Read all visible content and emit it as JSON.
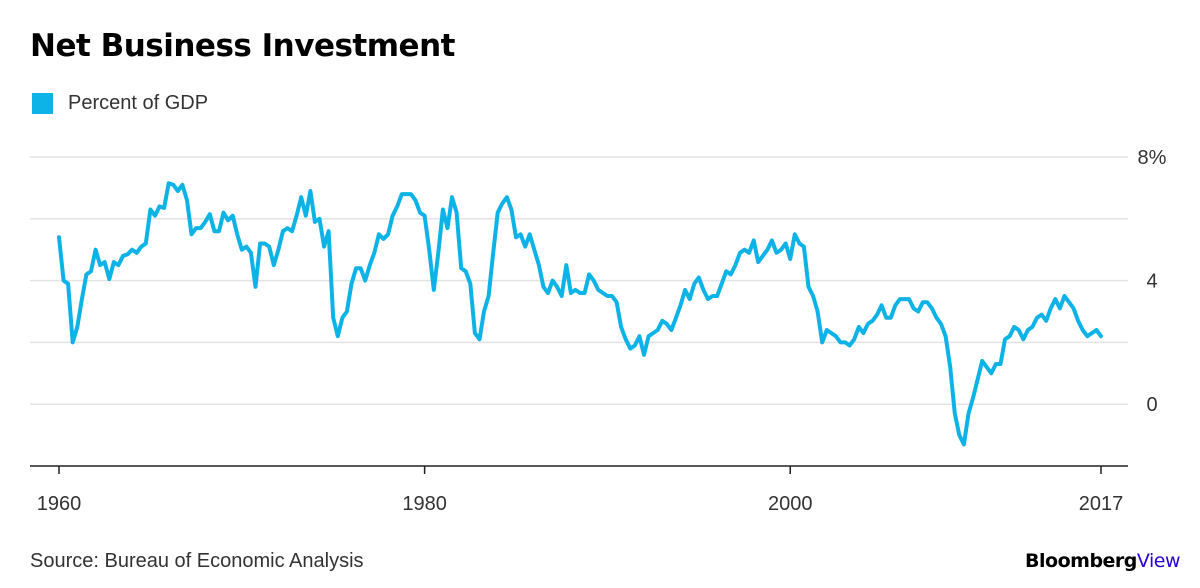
{
  "header": {
    "title": "Net Business Investment"
  },
  "legend": {
    "label": "Percent of GDP",
    "color": "#0db3e6"
  },
  "footer": {
    "source": "Source: Bureau of Economic Analysis",
    "brand_main": "Bloomberg",
    "brand_sub": "View"
  },
  "chart_data": {
    "type": "line",
    "title": "Net Business Investment",
    "xlabel": "",
    "ylabel": "",
    "xlim": [
      1960,
      2017
    ],
    "ylim": [
      -2,
      8
    ],
    "x_ticks": [
      {
        "value": 1960,
        "label": "1960",
        "anchor": "middle"
      },
      {
        "value": 1980,
        "label": "1980",
        "anchor": "middle"
      },
      {
        "value": 2000,
        "label": "2000",
        "anchor": "middle"
      },
      {
        "value": 2017,
        "label": "2017",
        "anchor": "middle"
      }
    ],
    "y_ticks": [
      {
        "value": 8,
        "label": "8%"
      },
      {
        "value": 6,
        "label": ""
      },
      {
        "value": 4,
        "label": "4"
      },
      {
        "value": 2,
        "label": ""
      },
      {
        "value": 0,
        "label": "0"
      }
    ],
    "grid": true,
    "series": [
      {
        "name": "Percent of GDP",
        "color": "#0db3e6",
        "points": [
          [
            1960.0,
            5.4
          ],
          [
            1960.25,
            4.0
          ],
          [
            1960.5,
            3.9
          ],
          [
            1960.75,
            2.0
          ],
          [
            1961.0,
            2.5
          ],
          [
            1961.25,
            3.4
          ],
          [
            1961.5,
            4.2
          ],
          [
            1961.75,
            4.3
          ],
          [
            1962.0,
            5.0
          ],
          [
            1962.25,
            4.5
          ],
          [
            1962.5,
            4.6
          ],
          [
            1962.75,
            4.05
          ],
          [
            1963.0,
            4.6
          ],
          [
            1963.25,
            4.5
          ],
          [
            1963.5,
            4.8
          ],
          [
            1963.75,
            4.85
          ],
          [
            1964.0,
            5.0
          ],
          [
            1964.25,
            4.9
          ],
          [
            1964.5,
            5.1
          ],
          [
            1964.75,
            5.2
          ],
          [
            1965.0,
            6.3
          ],
          [
            1965.25,
            6.1
          ],
          [
            1965.5,
            6.4
          ],
          [
            1965.75,
            6.35
          ],
          [
            1966.0,
            7.15
          ],
          [
            1966.25,
            7.1
          ],
          [
            1966.5,
            6.9
          ],
          [
            1966.75,
            7.1
          ],
          [
            1967.0,
            6.6
          ],
          [
            1967.25,
            5.5
          ],
          [
            1967.5,
            5.7
          ],
          [
            1967.75,
            5.7
          ],
          [
            1968.0,
            5.9
          ],
          [
            1968.25,
            6.15
          ],
          [
            1968.5,
            5.6
          ],
          [
            1968.75,
            5.6
          ],
          [
            1969.0,
            6.2
          ],
          [
            1969.25,
            5.95
          ],
          [
            1969.5,
            6.1
          ],
          [
            1969.75,
            5.5
          ],
          [
            1970.0,
            5.0
          ],
          [
            1970.25,
            5.1
          ],
          [
            1970.5,
            4.9
          ],
          [
            1970.75,
            3.8
          ],
          [
            1971.0,
            5.2
          ],
          [
            1971.25,
            5.2
          ],
          [
            1971.5,
            5.1
          ],
          [
            1971.75,
            4.5
          ],
          [
            1972.0,
            5.0
          ],
          [
            1972.25,
            5.6
          ],
          [
            1972.5,
            5.7
          ],
          [
            1972.75,
            5.6
          ],
          [
            1973.0,
            6.1
          ],
          [
            1973.25,
            6.7
          ],
          [
            1973.5,
            6.1
          ],
          [
            1973.75,
            6.9
          ],
          [
            1974.0,
            5.9
          ],
          [
            1974.25,
            6.0
          ],
          [
            1974.5,
            5.1
          ],
          [
            1974.75,
            5.6
          ],
          [
            1975.0,
            2.8
          ],
          [
            1975.25,
            2.2
          ],
          [
            1975.5,
            2.8
          ],
          [
            1975.75,
            3.0
          ],
          [
            1976.0,
            3.9
          ],
          [
            1976.25,
            4.4
          ],
          [
            1976.5,
            4.4
          ],
          [
            1976.75,
            4.0
          ],
          [
            1977.0,
            4.5
          ],
          [
            1977.25,
            4.9
          ],
          [
            1977.5,
            5.5
          ],
          [
            1977.75,
            5.35
          ],
          [
            1978.0,
            5.5
          ],
          [
            1978.25,
            6.1
          ],
          [
            1978.5,
            6.4
          ],
          [
            1978.75,
            6.8
          ],
          [
            1979.0,
            6.8
          ],
          [
            1979.25,
            6.8
          ],
          [
            1979.5,
            6.6
          ],
          [
            1979.75,
            6.2
          ],
          [
            1980.0,
            6.1
          ],
          [
            1980.25,
            5.0
          ],
          [
            1980.5,
            3.7
          ],
          [
            1980.75,
            4.9
          ],
          [
            1981.0,
            6.3
          ],
          [
            1981.25,
            5.7
          ],
          [
            1981.5,
            6.7
          ],
          [
            1981.75,
            6.2
          ],
          [
            1982.0,
            4.4
          ],
          [
            1982.25,
            4.3
          ],
          [
            1982.5,
            3.9
          ],
          [
            1982.75,
            2.3
          ],
          [
            1983.0,
            2.1
          ],
          [
            1983.25,
            3.0
          ],
          [
            1983.5,
            3.5
          ],
          [
            1983.75,
            4.9
          ],
          [
            1984.0,
            6.2
          ],
          [
            1984.25,
            6.5
          ],
          [
            1984.5,
            6.7
          ],
          [
            1984.75,
            6.3
          ],
          [
            1985.0,
            5.4
          ],
          [
            1985.25,
            5.5
          ],
          [
            1985.5,
            5.1
          ],
          [
            1985.75,
            5.5
          ],
          [
            1986.0,
            5.0
          ],
          [
            1986.25,
            4.5
          ],
          [
            1986.5,
            3.8
          ],
          [
            1986.75,
            3.6
          ],
          [
            1987.0,
            4.0
          ],
          [
            1987.25,
            3.8
          ],
          [
            1987.5,
            3.5
          ],
          [
            1987.75,
            4.5
          ],
          [
            1988.0,
            3.6
          ],
          [
            1988.25,
            3.7
          ],
          [
            1988.5,
            3.6
          ],
          [
            1988.75,
            3.6
          ],
          [
            1989.0,
            4.2
          ],
          [
            1989.25,
            4.0
          ],
          [
            1989.5,
            3.7
          ],
          [
            1989.75,
            3.6
          ],
          [
            1990.0,
            3.5
          ],
          [
            1990.25,
            3.5
          ],
          [
            1990.5,
            3.3
          ],
          [
            1990.75,
            2.5
          ],
          [
            1991.0,
            2.1
          ],
          [
            1991.25,
            1.8
          ],
          [
            1991.5,
            1.9
          ],
          [
            1991.75,
            2.2
          ],
          [
            1992.0,
            1.6
          ],
          [
            1992.25,
            2.2
          ],
          [
            1992.5,
            2.3
          ],
          [
            1992.75,
            2.4
          ],
          [
            1993.0,
            2.7
          ],
          [
            1993.25,
            2.6
          ],
          [
            1993.5,
            2.4
          ],
          [
            1993.75,
            2.8
          ],
          [
            1994.0,
            3.2
          ],
          [
            1994.25,
            3.7
          ],
          [
            1994.5,
            3.4
          ],
          [
            1994.75,
            3.9
          ],
          [
            1995.0,
            4.1
          ],
          [
            1995.25,
            3.7
          ],
          [
            1995.5,
            3.4
          ],
          [
            1995.75,
            3.5
          ],
          [
            1996.0,
            3.5
          ],
          [
            1996.25,
            3.9
          ],
          [
            1996.5,
            4.3
          ],
          [
            1996.75,
            4.2
          ],
          [
            1997.0,
            4.5
          ],
          [
            1997.25,
            4.9
          ],
          [
            1997.5,
            5.0
          ],
          [
            1997.75,
            4.9
          ],
          [
            1998.0,
            5.3
          ],
          [
            1998.25,
            4.6
          ],
          [
            1998.5,
            4.8
          ],
          [
            1998.75,
            5.0
          ],
          [
            1999.0,
            5.3
          ],
          [
            1999.25,
            4.9
          ],
          [
            1999.5,
            5.0
          ],
          [
            1999.75,
            5.2
          ],
          [
            2000.0,
            4.7
          ],
          [
            2000.25,
            5.5
          ],
          [
            2000.5,
            5.2
          ],
          [
            2000.75,
            5.1
          ],
          [
            2001.0,
            3.8
          ],
          [
            2001.25,
            3.5
          ],
          [
            2001.5,
            3.0
          ],
          [
            2001.75,
            2.0
          ],
          [
            2002.0,
            2.4
          ],
          [
            2002.25,
            2.3
          ],
          [
            2002.5,
            2.2
          ],
          [
            2002.75,
            2.0
          ],
          [
            2003.0,
            2.0
          ],
          [
            2003.25,
            1.9
          ],
          [
            2003.5,
            2.1
          ],
          [
            2003.75,
            2.5
          ],
          [
            2004.0,
            2.3
          ],
          [
            2004.25,
            2.6
          ],
          [
            2004.5,
            2.7
          ],
          [
            2004.75,
            2.9
          ],
          [
            2005.0,
            3.2
          ],
          [
            2005.25,
            2.8
          ],
          [
            2005.5,
            2.8
          ],
          [
            2005.75,
            3.2
          ],
          [
            2006.0,
            3.4
          ],
          [
            2006.25,
            3.4
          ],
          [
            2006.5,
            3.4
          ],
          [
            2006.75,
            3.1
          ],
          [
            2007.0,
            3.0
          ],
          [
            2007.25,
            3.3
          ],
          [
            2007.5,
            3.3
          ],
          [
            2007.75,
            3.1
          ],
          [
            2008.0,
            2.8
          ],
          [
            2008.25,
            2.6
          ],
          [
            2008.5,
            2.2
          ],
          [
            2008.75,
            1.2
          ],
          [
            2009.0,
            -0.3
          ],
          [
            2009.25,
            -1.0
          ],
          [
            2009.5,
            -1.3
          ],
          [
            2009.75,
            -0.3
          ],
          [
            2010.0,
            0.2
          ],
          [
            2010.25,
            0.8
          ],
          [
            2010.5,
            1.4
          ],
          [
            2010.75,
            1.2
          ],
          [
            2011.0,
            1.0
          ],
          [
            2011.25,
            1.3
          ],
          [
            2011.5,
            1.3
          ],
          [
            2011.75,
            2.1
          ],
          [
            2012.0,
            2.2
          ],
          [
            2012.25,
            2.5
          ],
          [
            2012.5,
            2.4
          ],
          [
            2012.75,
            2.1
          ],
          [
            2013.0,
            2.4
          ],
          [
            2013.25,
            2.5
          ],
          [
            2013.5,
            2.8
          ],
          [
            2013.75,
            2.9
          ],
          [
            2014.0,
            2.7
          ],
          [
            2014.25,
            3.1
          ],
          [
            2014.5,
            3.4
          ],
          [
            2014.75,
            3.1
          ],
          [
            2015.0,
            3.5
          ],
          [
            2015.25,
            3.3
          ],
          [
            2015.5,
            3.1
          ],
          [
            2015.75,
            2.7
          ],
          [
            2016.0,
            2.4
          ],
          [
            2016.25,
            2.2
          ],
          [
            2016.5,
            2.3
          ],
          [
            2016.75,
            2.4
          ],
          [
            2017.0,
            2.2
          ]
        ]
      }
    ]
  }
}
